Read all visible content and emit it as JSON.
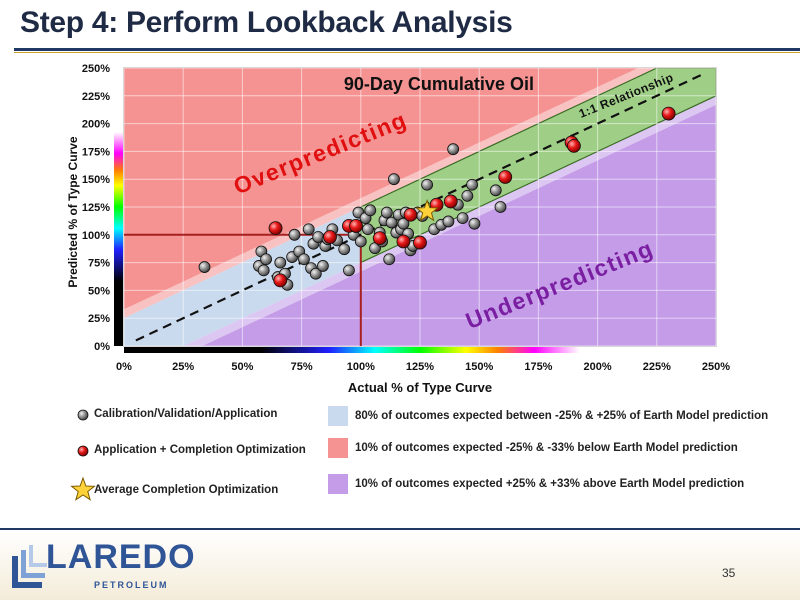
{
  "slide": {
    "title": "Step 4: Perform Lookback Analysis",
    "page_number": "35",
    "logo_text": "LAREDO",
    "logo_subtext": "PETROLEUM"
  },
  "chart_data": {
    "type": "scatter",
    "title": "90-Day Cumulative Oil",
    "xlabel": "Actual % of Type Curve",
    "ylabel": "Predicted % of Type Curve",
    "xlim": [
      0,
      2.5
    ],
    "ylim": [
      0,
      2.5
    ],
    "x_ticks": [
      "0%",
      "25%",
      "50%",
      "75%",
      "100%",
      "125%",
      "150%",
      "175%",
      "200%",
      "225%",
      "250%"
    ],
    "y_ticks": [
      "0%",
      "25%",
      "50%",
      "75%",
      "100%",
      "125%",
      "150%",
      "175%",
      "200%",
      "225%",
      "250%"
    ],
    "grid": true,
    "annotations": {
      "over": "Overpredicting",
      "under": "Underpredicting",
      "one_to_one": "1:1 Relationship"
    },
    "bands": [
      {
        "name": "80% of outcomes expected between -25% & +25% of Earth Model prediction",
        "color": "#c9d9ee",
        "offset_low": -0.25,
        "offset_high": 0.25
      },
      {
        "name": "10% of outcomes expected -25% & -33% below Earth Model prediction",
        "color": "#f59393",
        "offset_low": 0.25,
        "offset_high": 0.33
      },
      {
        "name": "10% of outcomes expected +25% & +33% above Earth Model prediction",
        "color": "#c49ce8",
        "offset_low": -0.33,
        "offset_high": -0.25
      }
    ],
    "series": [
      {
        "name": "Calibration/Validation/Application",
        "color": "#777777",
        "x": [
          0.34,
          0.57,
          0.58,
          0.59,
          0.6,
          0.65,
          0.66,
          0.68,
          0.69,
          0.71,
          0.72,
          0.74,
          0.76,
          0.78,
          0.79,
          0.8,
          0.81,
          0.82,
          0.84,
          0.85,
          0.86,
          0.88,
          0.9,
          0.93,
          0.95,
          0.97,
          0.98,
          0.99,
          1.0,
          1.02,
          1.03,
          1.04,
          1.06,
          1.08,
          1.09,
          1.1,
          1.11,
          1.12,
          1.13,
          1.14,
          1.15,
          1.16,
          1.17,
          1.18,
          1.19,
          1.2,
          1.21,
          1.22,
          1.24,
          1.26,
          1.28,
          1.31,
          1.34,
          1.37,
          1.39,
          1.41,
          1.43,
          1.45,
          1.47,
          1.48,
          1.57,
          1.59
        ],
        "y": [
          0.71,
          0.72,
          0.85,
          0.68,
          0.78,
          0.62,
          0.75,
          0.65,
          0.55,
          0.8,
          1.0,
          0.85,
          0.78,
          1.05,
          0.7,
          0.92,
          0.65,
          0.98,
          0.72,
          0.9,
          0.96,
          1.05,
          0.95,
          0.87,
          0.68,
          1.0,
          1.07,
          1.2,
          0.94,
          1.15,
          1.05,
          1.22,
          0.88,
          1.02,
          0.94,
          1.13,
          1.2,
          0.78,
          1.11,
          1.5,
          1.02,
          1.18,
          1.05,
          1.1,
          1.2,
          1.01,
          0.86,
          0.9,
          1.2,
          1.17,
          1.45,
          1.05,
          1.09,
          1.12,
          1.77,
          1.27,
          1.15,
          1.35,
          1.45,
          1.1,
          1.4,
          1.25
        ]
      },
      {
        "name": "Application + Completion Optimization",
        "color": "#e81818",
        "x": [
          0.64,
          0.66,
          0.87,
          0.95,
          0.98,
          1.08,
          1.18,
          1.21,
          1.25,
          1.32,
          1.38,
          1.61,
          1.89,
          1.9,
          2.3
        ],
        "y": [
          1.06,
          0.59,
          0.98,
          1.08,
          1.08,
          0.97,
          0.94,
          1.18,
          0.93,
          1.27,
          1.3,
          1.52,
          1.83,
          1.8,
          2.09
        ]
      },
      {
        "name": "Average Completion Optimization",
        "color": "#ffd23a",
        "x": [
          1.28
        ],
        "y": [
          1.21
        ]
      }
    ],
    "reference_lines": {
      "x": 1.0,
      "y": 1.0,
      "color": "#a62020"
    },
    "legend": {
      "placement": "bottom"
    }
  }
}
